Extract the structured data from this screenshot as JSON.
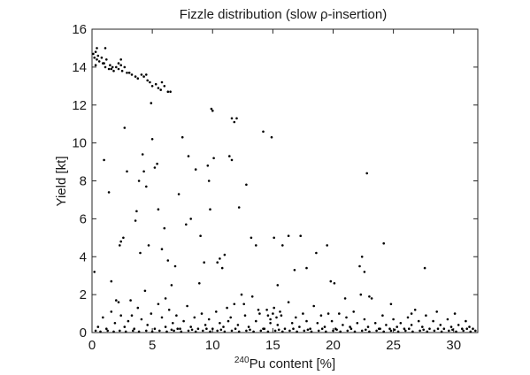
{
  "chart_data": {
    "type": "scatter",
    "title": "Fizzle distribution (slow ρ-insertion)",
    "xlabel_sup": "240",
    "xlabel_main": "Pu content [%]",
    "ylabel": "Yield [kt]",
    "xlim": [
      0,
      32
    ],
    "ylim": [
      0,
      16
    ],
    "xticks": [
      0,
      5,
      10,
      15,
      20,
      25,
      30
    ],
    "yticks": [
      0,
      2,
      4,
      6,
      8,
      10,
      12,
      14,
      16
    ],
    "grid": false,
    "legend": "none",
    "marker_color": "#000000",
    "points": [
      [
        0.1,
        14.7
      ],
      [
        0.2,
        14.5
      ],
      [
        0.3,
        14.8
      ],
      [
        0.4,
        14.4
      ],
      [
        0.5,
        14.6
      ],
      [
        0.6,
        14.3
      ],
      [
        0.8,
        14.5
      ],
      [
        1.0,
        14.2
      ],
      [
        1.1,
        14.0
      ],
      [
        1.2,
        14.4
      ],
      [
        1.4,
        13.9
      ],
      [
        1.5,
        14.1
      ],
      [
        1.7,
        14.0
      ],
      [
        1.8,
        13.8
      ],
      [
        2.0,
        14.0
      ],
      [
        2.2,
        13.9
      ],
      [
        2.4,
        14.1
      ],
      [
        2.5,
        13.8
      ],
      [
        2.7,
        14.0
      ],
      [
        2.9,
        13.7
      ],
      [
        3.1,
        13.7
      ],
      [
        3.3,
        13.6
      ],
      [
        3.6,
        13.5
      ],
      [
        3.8,
        13.4
      ],
      [
        4.1,
        13.6
      ],
      [
        4.3,
        13.5
      ],
      [
        4.6,
        13.3
      ],
      [
        4.8,
        13.2
      ],
      [
        5.0,
        13.0
      ],
      [
        5.3,
        13.1
      ],
      [
        5.5,
        12.9
      ],
      [
        5.7,
        12.8
      ],
      [
        6.0,
        13.0
      ],
      [
        6.3,
        12.7
      ],
      [
        6.5,
        12.7
      ],
      [
        0.4,
        15.0
      ],
      [
        1.1,
        15.0
      ],
      [
        2.4,
        14.4
      ],
      [
        0.9,
        14.2
      ],
      [
        1.6,
        13.9
      ],
      [
        4.5,
        13.6
      ],
      [
        4.9,
        12.1
      ],
      [
        5.8,
        13.2
      ],
      [
        0.3,
        14.1
      ],
      [
        2.2,
        14.2
      ],
      [
        0.2,
        3.2
      ],
      [
        1.0,
        9.1
      ],
      [
        1.4,
        7.4
      ],
      [
        1.6,
        2.7
      ],
      [
        2.0,
        1.7
      ],
      [
        2.3,
        4.6
      ],
      [
        2.4,
        4.8
      ],
      [
        2.6,
        5.0
      ],
      [
        2.7,
        10.8
      ],
      [
        2.9,
        8.5
      ],
      [
        3.3,
        0.9
      ],
      [
        3.6,
        5.9
      ],
      [
        3.7,
        6.4
      ],
      [
        3.9,
        8.0
      ],
      [
        4.0,
        4.2
      ],
      [
        4.2,
        9.4
      ],
      [
        4.3,
        8.5
      ],
      [
        4.5,
        7.7
      ],
      [
        4.7,
        4.6
      ],
      [
        5.0,
        10.2
      ],
      [
        5.2,
        8.7
      ],
      [
        5.4,
        8.9
      ],
      [
        5.5,
        6.5
      ],
      [
        5.8,
        4.4
      ],
      [
        6.0,
        5.5
      ],
      [
        6.1,
        1.8
      ],
      [
        6.3,
        3.8
      ],
      [
        6.6,
        2.5
      ],
      [
        6.9,
        3.5
      ],
      [
        7.2,
        7.3
      ],
      [
        7.5,
        10.3
      ],
      [
        7.8,
        5.7
      ],
      [
        8.0,
        9.3
      ],
      [
        8.2,
        6.0
      ],
      [
        8.6,
        8.6
      ],
      [
        8.9,
        2.6
      ],
      [
        9.0,
        5.1
      ],
      [
        9.3,
        3.7
      ],
      [
        9.6,
        8.8
      ],
      [
        9.7,
        8.0
      ],
      [
        9.8,
        6.5
      ],
      [
        9.9,
        11.8
      ],
      [
        10.0,
        11.7
      ],
      [
        10.1,
        9.2
      ],
      [
        10.4,
        3.7
      ],
      [
        10.6,
        3.9
      ],
      [
        10.8,
        3.4
      ],
      [
        11.0,
        4.1
      ],
      [
        11.4,
        9.3
      ],
      [
        11.6,
        9.1
      ],
      [
        11.6,
        11.3
      ],
      [
        11.8,
        11.1
      ],
      [
        12.0,
        11.3
      ],
      [
        12.2,
        6.6
      ],
      [
        12.8,
        7.8
      ],
      [
        13.2,
        5.0
      ],
      [
        13.6,
        4.6
      ],
      [
        14.2,
        10.6
      ],
      [
        14.9,
        10.3
      ],
      [
        15.1,
        5.0
      ],
      [
        15.4,
        2.5
      ],
      [
        15.8,
        4.6
      ],
      [
        16.3,
        5.1
      ],
      [
        16.8,
        3.3
      ],
      [
        17.3,
        5.1
      ],
      [
        17.8,
        3.4
      ],
      [
        18.6,
        4.2
      ],
      [
        19.5,
        4.6
      ],
      [
        19.8,
        2.7
      ],
      [
        20.1,
        2.6
      ],
      [
        21.0,
        1.8
      ],
      [
        22.2,
        3.5
      ],
      [
        22.4,
        4.0
      ],
      [
        22.6,
        3.2
      ],
      [
        22.8,
        8.4
      ],
      [
        23.0,
        1.9
      ],
      [
        24.2,
        4.7
      ],
      [
        24.8,
        1.5
      ],
      [
        26.5,
        1.0
      ],
      [
        27.6,
        3.4
      ],
      [
        0.5,
        0.3
      ],
      [
        0.9,
        0.8
      ],
      [
        1.2,
        0.2
      ],
      [
        1.6,
        1.1
      ],
      [
        1.9,
        0.5
      ],
      [
        2.2,
        1.6
      ],
      [
        2.4,
        0.9
      ],
      [
        2.7,
        0.3
      ],
      [
        3.0,
        0.6
      ],
      [
        3.2,
        1.7
      ],
      [
        3.5,
        0.2
      ],
      [
        3.8,
        1.3
      ],
      [
        4.1,
        0.7
      ],
      [
        4.4,
        2.2
      ],
      [
        4.6,
        0.4
      ],
      [
        4.9,
        1.0
      ],
      [
        5.2,
        0.2
      ],
      [
        5.5,
        1.5
      ],
      [
        5.8,
        0.8
      ],
      [
        6.1,
        0.3
      ],
      [
        6.4,
        1.2
      ],
      [
        6.7,
        0.5
      ],
      [
        7.0,
        0.9
      ],
      [
        7.3,
        0.2
      ],
      [
        7.6,
        0.6
      ],
      [
        7.9,
        1.4
      ],
      [
        8.2,
        0.3
      ],
      [
        8.5,
        0.8
      ],
      [
        8.8,
        0.2
      ],
      [
        9.1,
        1.0
      ],
      [
        9.4,
        0.4
      ],
      [
        9.7,
        0.7
      ],
      [
        10.0,
        0.2
      ],
      [
        10.3,
        1.1
      ],
      [
        10.6,
        0.5
      ],
      [
        10.9,
        0.3
      ],
      [
        11.2,
        1.3
      ],
      [
        11.5,
        0.8
      ],
      [
        11.8,
        1.5
      ],
      [
        12.1,
        0.4
      ],
      [
        12.4,
        2.0
      ],
      [
        12.7,
        0.9
      ],
      [
        13.0,
        0.3
      ],
      [
        13.3,
        1.9
      ],
      [
        13.6,
        0.6
      ],
      [
        13.9,
        1.0
      ],
      [
        14.2,
        0.2
      ],
      [
        14.5,
        1.2
      ],
      [
        14.8,
        0.7
      ],
      [
        15.1,
        1.3
      ],
      [
        15.4,
        0.4
      ],
      [
        15.7,
        0.9
      ],
      [
        16.0,
        0.2
      ],
      [
        16.3,
        1.6
      ],
      [
        16.6,
        0.5
      ],
      [
        16.9,
        0.8
      ],
      [
        17.2,
        0.3
      ],
      [
        17.5,
        1.0
      ],
      [
        17.8,
        0.6
      ],
      [
        18.1,
        0.2
      ],
      [
        18.4,
        1.4
      ],
      [
        18.7,
        0.5
      ],
      [
        19.0,
        0.9
      ],
      [
        19.3,
        0.3
      ],
      [
        19.6,
        1.0
      ],
      [
        19.9,
        0.6
      ],
      [
        20.2,
        0.2
      ],
      [
        20.5,
        1.0
      ],
      [
        20.8,
        0.4
      ],
      [
        21.1,
        0.8
      ],
      [
        21.4,
        0.3
      ],
      [
        21.7,
        1.1
      ],
      [
        22.0,
        0.5
      ],
      [
        22.3,
        2.0
      ],
      [
        22.6,
        0.7
      ],
      [
        22.9,
        0.3
      ],
      [
        23.2,
        1.8
      ],
      [
        23.5,
        0.5
      ],
      [
        23.8,
        0.2
      ],
      [
        24.1,
        0.9
      ],
      [
        24.4,
        0.4
      ],
      [
        24.7,
        0.2
      ],
      [
        25.0,
        0.7
      ],
      [
        25.3,
        0.3
      ],
      [
        25.6,
        0.5
      ],
      [
        25.9,
        0.2
      ],
      [
        26.2,
        0.8
      ],
      [
        26.5,
        0.4
      ],
      [
        26.8,
        1.2
      ],
      [
        27.1,
        0.6
      ],
      [
        27.4,
        0.3
      ],
      [
        27.7,
        0.9
      ],
      [
        28.0,
        0.2
      ],
      [
        28.3,
        0.6
      ],
      [
        28.6,
        1.1
      ],
      [
        28.9,
        0.4
      ],
      [
        29.2,
        0.2
      ],
      [
        29.5,
        0.7
      ],
      [
        29.8,
        0.3
      ],
      [
        30.1,
        1.0
      ],
      [
        30.4,
        0.4
      ],
      [
        30.7,
        0.2
      ],
      [
        31.0,
        0.6
      ],
      [
        31.3,
        0.3
      ],
      [
        31.6,
        0.2
      ],
      [
        0.3,
        0.1
      ],
      [
        0.7,
        0.05
      ],
      [
        1.3,
        0.1
      ],
      [
        1.8,
        0.05
      ],
      [
        2.3,
        0.1
      ],
      [
        2.8,
        0.05
      ],
      [
        3.4,
        0.1
      ],
      [
        3.9,
        0.05
      ],
      [
        4.5,
        0.1
      ],
      [
        5.0,
        0.05
      ],
      [
        5.6,
        0.1
      ],
      [
        6.2,
        0.05
      ],
      [
        6.8,
        0.1
      ],
      [
        7.4,
        0.05
      ],
      [
        8.0,
        0.1
      ],
      [
        8.6,
        0.05
      ],
      [
        9.2,
        0.1
      ],
      [
        9.8,
        0.05
      ],
      [
        10.4,
        0.1
      ],
      [
        11.0,
        0.05
      ],
      [
        11.6,
        0.1
      ],
      [
        12.2,
        0.05
      ],
      [
        12.8,
        0.1
      ],
      [
        13.4,
        0.05
      ],
      [
        14.0,
        0.1
      ],
      [
        14.6,
        0.05
      ],
      [
        15.2,
        0.1
      ],
      [
        15.8,
        0.05
      ],
      [
        16.4,
        0.1
      ],
      [
        17.0,
        0.05
      ],
      [
        17.6,
        0.1
      ],
      [
        18.2,
        0.05
      ],
      [
        18.8,
        0.1
      ],
      [
        19.4,
        0.05
      ],
      [
        20.0,
        0.1
      ],
      [
        20.6,
        0.05
      ],
      [
        21.2,
        0.1
      ],
      [
        21.8,
        0.05
      ],
      [
        22.4,
        0.1
      ],
      [
        23.0,
        0.05
      ],
      [
        23.6,
        0.1
      ],
      [
        24.2,
        0.05
      ],
      [
        24.8,
        0.1
      ],
      [
        25.4,
        0.05
      ],
      [
        26.0,
        0.1
      ],
      [
        26.6,
        0.05
      ],
      [
        27.2,
        0.1
      ],
      [
        27.8,
        0.05
      ],
      [
        28.4,
        0.1
      ],
      [
        29.0,
        0.05
      ],
      [
        29.6,
        0.1
      ],
      [
        30.2,
        0.05
      ],
      [
        30.8,
        0.1
      ],
      [
        31.4,
        0.05
      ],
      [
        31.8,
        0.1
      ],
      [
        6.6,
        0.15
      ],
      [
        7.1,
        0.2
      ],
      [
        8.3,
        0.15
      ],
      [
        9.5,
        0.2
      ],
      [
        10.7,
        0.15
      ],
      [
        11.9,
        0.2
      ],
      [
        13.1,
        0.15
      ],
      [
        14.3,
        0.2
      ],
      [
        15.5,
        0.15
      ],
      [
        16.7,
        0.2
      ],
      [
        17.9,
        0.15
      ],
      [
        19.1,
        0.2
      ],
      [
        20.3,
        0.15
      ],
      [
        21.5,
        0.2
      ],
      [
        22.7,
        0.15
      ],
      [
        23.9,
        0.2
      ],
      [
        25.1,
        0.15
      ],
      [
        26.3,
        0.2
      ],
      [
        27.5,
        0.15
      ],
      [
        28.7,
        0.2
      ],
      [
        29.9,
        0.15
      ],
      [
        31.1,
        0.2
      ],
      [
        14.8,
        0.5
      ],
      [
        15.0,
        1.0
      ],
      [
        15.3,
        0.8
      ],
      [
        14.6,
        0.9
      ],
      [
        15.6,
        1.1
      ],
      [
        12.6,
        1.5
      ],
      [
        13.8,
        1.2
      ],
      [
        11.3,
        0.6
      ]
    ]
  }
}
